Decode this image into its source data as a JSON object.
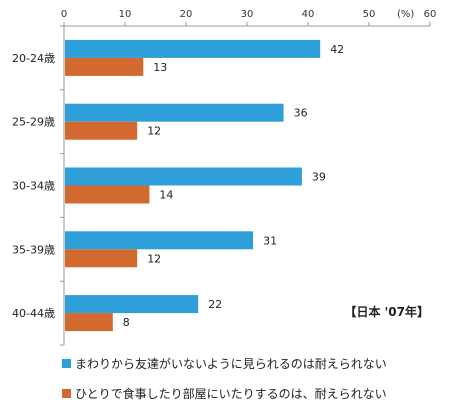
{
  "chart_data": {
    "type": "bar",
    "orientation": "horizontal",
    "categories": [
      "20-24歳",
      "25-29歳",
      "30-34歳",
      "35-39歳",
      "40-44歳"
    ],
    "series": [
      {
        "name": "まわりから友達がいないように見られるのは耐えられない",
        "color": "#2e9fd8",
        "values": [
          42,
          36,
          39,
          31,
          22
        ]
      },
      {
        "name": "ひとりで食事したり部屋にいたりするのは、耐えられない",
        "color": "#d2692f",
        "values": [
          13,
          12,
          14,
          12,
          8
        ]
      }
    ],
    "xlim": [
      0,
      60
    ],
    "xticks": [
      "0",
      "10",
      "20",
      "30",
      "40",
      "50",
      "60"
    ],
    "unit_label": "(%)",
    "annotation": "【日本 '07年】",
    "grid": false,
    "legend_position": "bottom"
  }
}
